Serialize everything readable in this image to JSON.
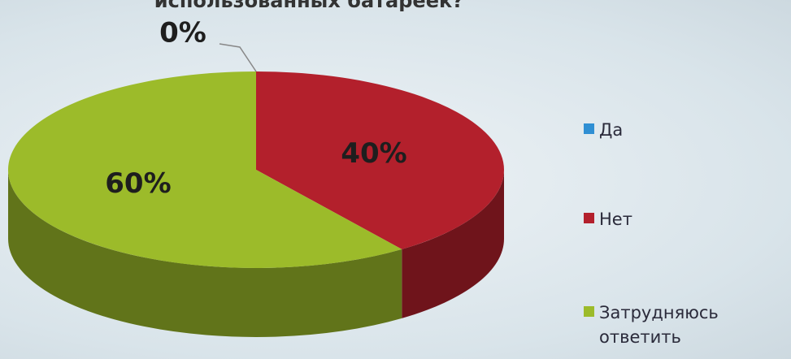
{
  "chart_data": {
    "type": "pie",
    "title": "использованных батареек?",
    "categories": [
      "Да",
      "Нет",
      "Затрудняюсь ответить"
    ],
    "values": [
      0,
      40,
      60
    ],
    "value_labels": [
      "0%",
      "40%",
      "60%"
    ],
    "colors": [
      "#2f8fd3",
      "#b3202c",
      "#9cbb2a"
    ]
  }
}
